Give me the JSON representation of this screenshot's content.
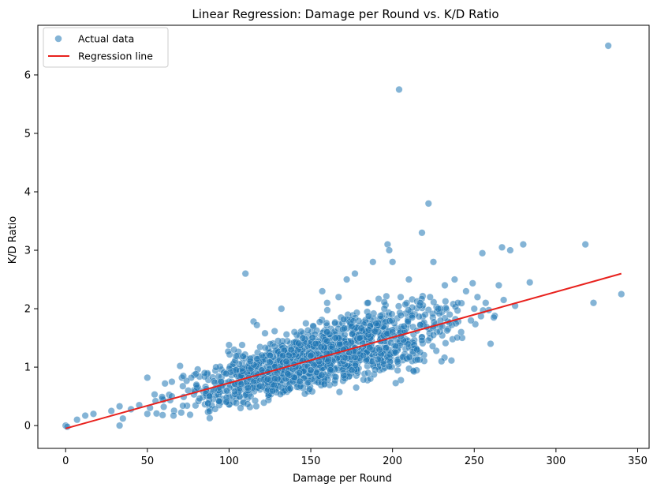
{
  "chart_data": {
    "type": "scatter",
    "title": "Linear Regression: Damage per Round vs. K/D Ratio",
    "xlabel": "Damage per Round",
    "ylabel": "K/D Ratio",
    "xlim": [
      -17,
      357
    ],
    "ylim": [
      -0.39,
      6.85
    ],
    "xticks": [
      0,
      50,
      100,
      150,
      200,
      250,
      300,
      350
    ],
    "yticks": [
      0,
      1,
      2,
      3,
      4,
      5,
      6
    ],
    "legend_position": "top-left",
    "colors": {
      "points": "#1f77b4",
      "line": "#e8211d"
    },
    "series": [
      {
        "name": "Actual data",
        "kind": "scatter",
        "sampled_points": [
          [
            0,
            0
          ],
          [
            1,
            -0.02
          ],
          [
            7,
            0.1
          ],
          [
            12,
            0.17
          ],
          [
            17,
            0.2
          ],
          [
            28,
            0.25
          ],
          [
            33,
            0.33
          ],
          [
            33,
            0
          ],
          [
            35,
            0.12
          ],
          [
            40,
            0.28
          ],
          [
            45,
            0.35
          ],
          [
            50,
            0.2
          ],
          [
            50,
            0.82
          ],
          [
            55,
            0.42
          ],
          [
            60,
            0.32
          ],
          [
            65,
            0.75
          ],
          [
            65,
            0.5
          ],
          [
            66,
            0.17
          ],
          [
            70,
            1.02
          ],
          [
            72,
            0.85
          ],
          [
            75,
            0.6
          ],
          [
            80,
            0.7
          ],
          [
            85,
            0.9
          ],
          [
            88,
            0.5
          ],
          [
            92,
            1.0
          ],
          [
            95,
            0.75
          ],
          [
            100,
            1.38
          ],
          [
            103,
            1.3
          ],
          [
            107,
            0.3
          ],
          [
            108,
            1.38
          ],
          [
            110,
            2.6
          ],
          [
            113,
            1.1
          ],
          [
            115,
            1.78
          ],
          [
            117,
            1.72
          ],
          [
            120,
            0.95
          ],
          [
            122,
            1.58
          ],
          [
            125,
            1.2
          ],
          [
            128,
            0.8
          ],
          [
            130,
            1.45
          ],
          [
            132,
            2.0
          ],
          [
            135,
            1.1
          ],
          [
            138,
            1.3
          ],
          [
            140,
            1.6
          ],
          [
            143,
            0.9
          ],
          [
            145,
            1.5
          ],
          [
            147,
            1.75
          ],
          [
            150,
            1.2
          ],
          [
            150,
            0.95
          ],
          [
            153,
            1.4
          ],
          [
            155,
            1.1
          ],
          [
            157,
            2.3
          ],
          [
            160,
            1.6
          ],
          [
            160,
            2.1
          ],
          [
            162,
            0.95
          ],
          [
            165,
            1.5
          ],
          [
            167,
            2.2
          ],
          [
            170,
            1.3
          ],
          [
            172,
            2.5
          ],
          [
            175,
            1.7
          ],
          [
            175,
            0.95
          ],
          [
            177,
            2.6
          ],
          [
            180,
            1.5
          ],
          [
            182,
            1.2
          ],
          [
            185,
            2.1
          ],
          [
            188,
            2.8
          ],
          [
            190,
            1.75
          ],
          [
            192,
            1.3
          ],
          [
            195,
            2.0
          ],
          [
            197,
            3.1
          ],
          [
            198,
            3.0
          ],
          [
            200,
            1.6
          ],
          [
            200,
            2.8
          ],
          [
            202,
            1.25
          ],
          [
            204,
            5.75
          ],
          [
            205,
            2.2
          ],
          [
            207,
            1.7
          ],
          [
            210,
            2.5
          ],
          [
            212,
            1.85
          ],
          [
            215,
            1.3
          ],
          [
            217,
            2.1
          ],
          [
            218,
            3.3
          ],
          [
            220,
            1.9
          ],
          [
            222,
            3.8
          ],
          [
            223,
            2.2
          ],
          [
            225,
            1.55
          ],
          [
            225,
            2.8
          ],
          [
            228,
            2.0
          ],
          [
            230,
            1.1
          ],
          [
            232,
            2.4
          ],
          [
            235,
            1.9
          ],
          [
            238,
            2.5
          ],
          [
            240,
            2.1
          ],
          [
            242,
            1.6
          ],
          [
            245,
            2.3
          ],
          [
            248,
            1.8
          ],
          [
            250,
            2.0
          ],
          [
            252,
            2.2
          ],
          [
            255,
            2.95
          ],
          [
            257,
            2.1
          ],
          [
            260,
            1.4
          ],
          [
            262,
            1.85
          ],
          [
            265,
            2.4
          ],
          [
            267,
            3.05
          ],
          [
            268,
            2.15
          ],
          [
            272,
            3.0
          ],
          [
            275,
            2.05
          ],
          [
            280,
            3.1
          ],
          [
            284,
            2.45
          ],
          [
            318,
            3.1
          ],
          [
            323,
            2.1
          ],
          [
            332,
            6.5
          ],
          [
            340,
            2.25
          ]
        ]
      },
      {
        "name": "Regression line",
        "kind": "line",
        "points": [
          [
            0,
            -0.05
          ],
          [
            340,
            2.6
          ]
        ]
      }
    ]
  }
}
